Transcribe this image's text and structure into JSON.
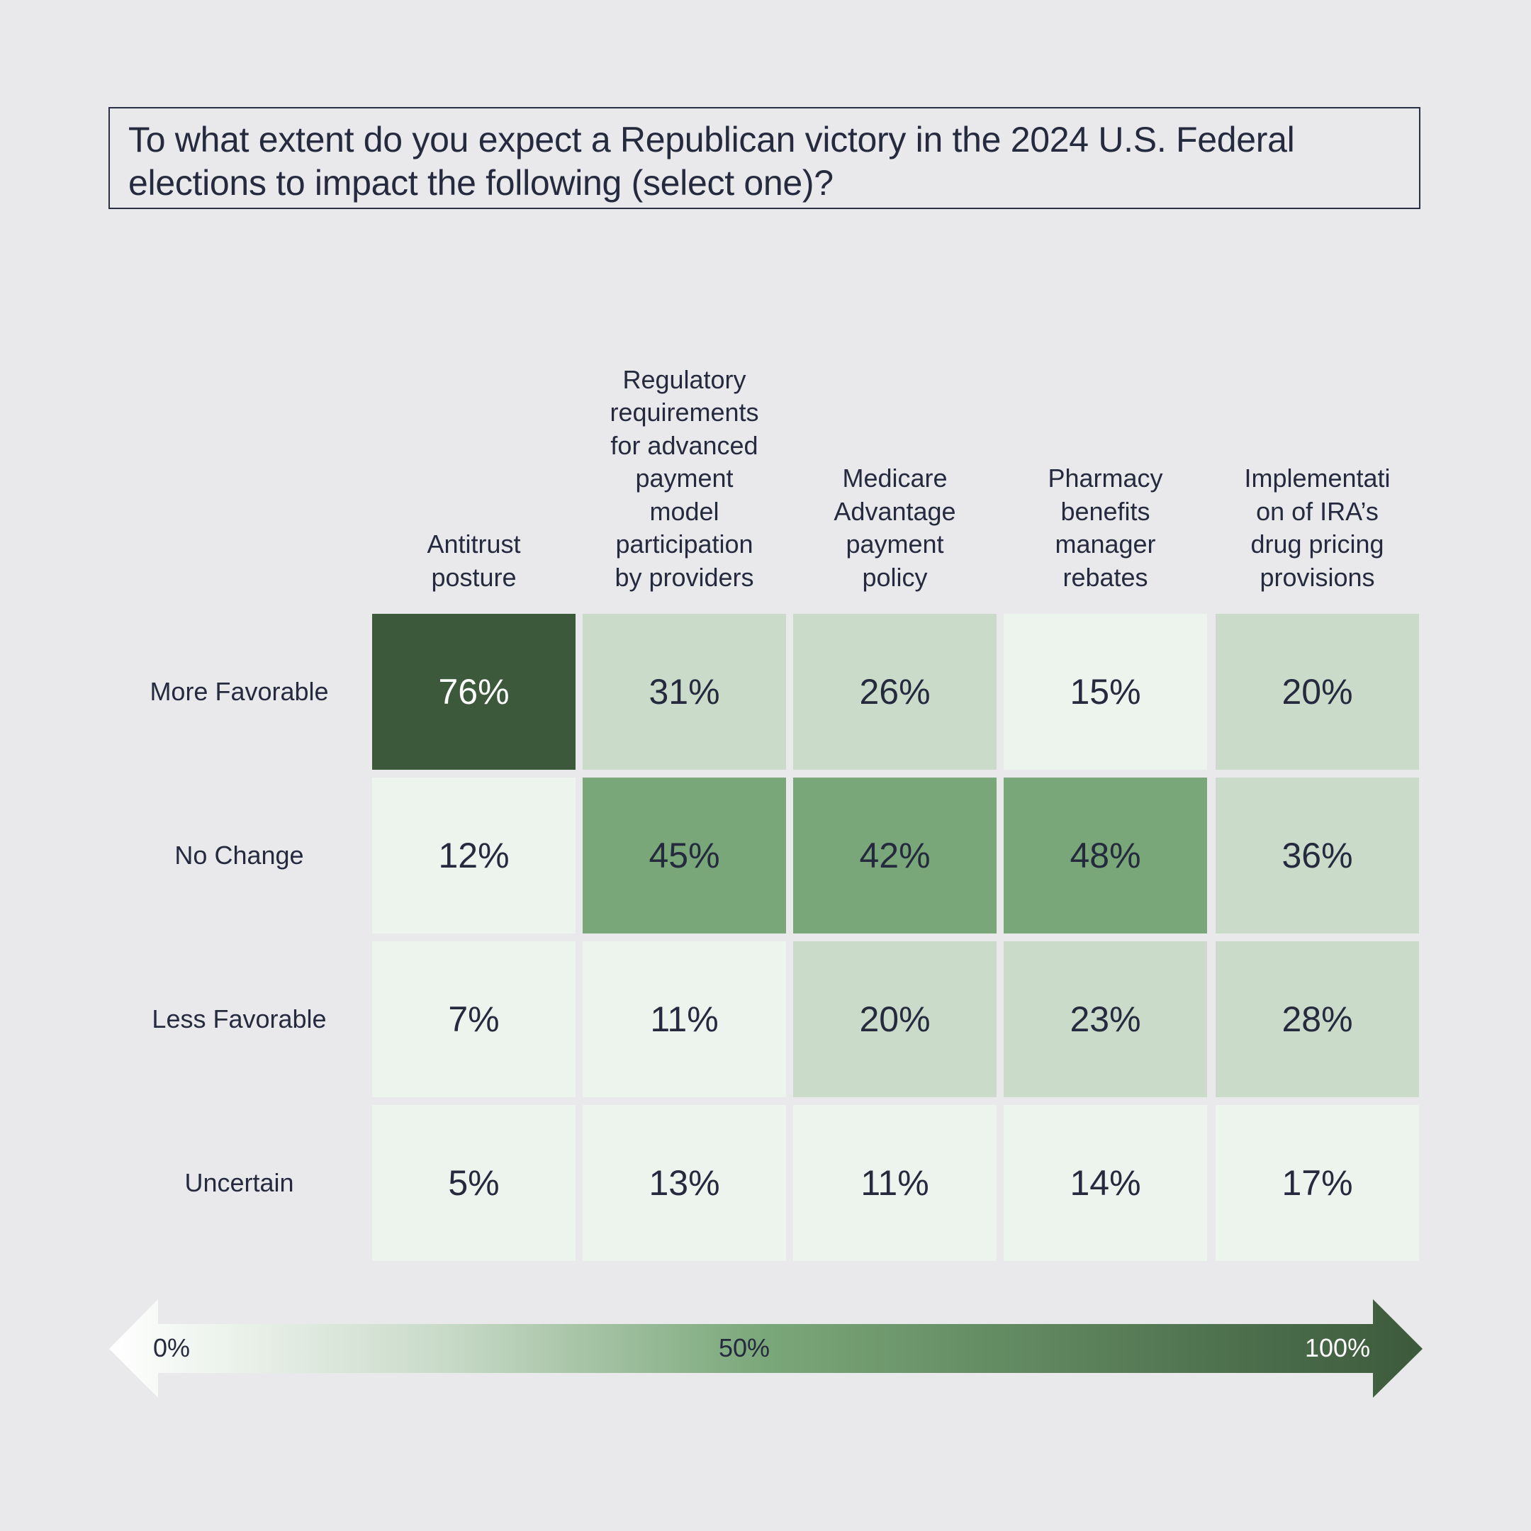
{
  "title": "To what extent do you expect a Republican victory in the 2024 U.S. Federal elections to impact the following (select one)?",
  "title_lines": [
    "To what extent do you expect a Republican victory in the 2024 U.S. Federal",
    "elections to impact the following (select one)?"
  ],
  "colors": {
    "background": "#e9e9eb",
    "text": "#252a3e",
    "scale_low": "#edf3ed",
    "scale_light": "#cadbca",
    "scale_mid": "#7aa779",
    "scale_high": "#3c5a3b"
  },
  "chart_data": {
    "type": "heatmap",
    "title": "To what extent do you expect a Republican victory in the 2024 U.S. Federal elections to impact the following (select one)?",
    "columns": [
      {
        "label": "Antitrust posture",
        "lines": [
          "Antitrust",
          "posture"
        ]
      },
      {
        "label": "Regulatory requirements for advanced payment model participation by providers",
        "lines": [
          "Regulatory",
          "requirements",
          "for advanced",
          "payment",
          "model",
          "participation",
          "by providers"
        ]
      },
      {
        "label": "Medicare Advantage payment policy",
        "lines": [
          "Medicare",
          "Advantage",
          "payment",
          "policy"
        ]
      },
      {
        "label": "Pharmacy benefits manager rebates",
        "lines": [
          "Pharmacy",
          "benefits",
          "manager",
          "rebates"
        ]
      },
      {
        "label": "Implementation of IRA’s drug pricing provisions",
        "lines": [
          "Implementati",
          "on of IRA’s",
          "drug pricing",
          "provisions"
        ]
      }
    ],
    "rows": [
      "More Favorable",
      "No Change",
      "Less Favorable",
      "Uncertain"
    ],
    "values": [
      [
        76,
        31,
        26,
        15,
        20
      ],
      [
        12,
        45,
        42,
        48,
        36
      ],
      [
        7,
        11,
        20,
        23,
        28
      ],
      [
        5,
        13,
        11,
        14,
        17
      ]
    ],
    "value_labels": [
      [
        "76%",
        "31%",
        "26%",
        "15%",
        "20%"
      ],
      [
        "12%",
        "45%",
        "42%",
        "48%",
        "36%"
      ],
      [
        "7%",
        "11%",
        "20%",
        "23%",
        "28%"
      ],
      [
        "5%",
        "13%",
        "11%",
        "14%",
        "17%"
      ]
    ],
    "unit": "%",
    "color_scale": {
      "range": [
        0,
        100
      ],
      "labels": [
        "0%",
        "50%",
        "100%"
      ],
      "low_color": "#ffffff",
      "mid_color": "#7aa779",
      "high_color": "#3c5a3b"
    }
  }
}
